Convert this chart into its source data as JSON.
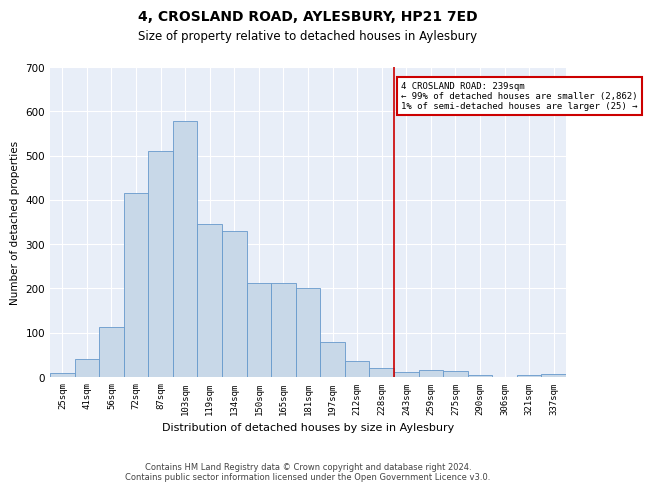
{
  "title": "4, CROSLAND ROAD, AYLESBURY, HP21 7ED",
  "subtitle": "Size of property relative to detached houses in Aylesbury",
  "xlabel": "Distribution of detached houses by size in Aylesbury",
  "ylabel": "Number of detached properties",
  "categories": [
    "25sqm",
    "41sqm",
    "56sqm",
    "72sqm",
    "87sqm",
    "103sqm",
    "119sqm",
    "134sqm",
    "150sqm",
    "165sqm",
    "181sqm",
    "197sqm",
    "212sqm",
    "228sqm",
    "243sqm",
    "259sqm",
    "275sqm",
    "290sqm",
    "306sqm",
    "321sqm",
    "337sqm"
  ],
  "bar_heights": [
    8,
    40,
    113,
    415,
    510,
    578,
    345,
    330,
    212,
    212,
    200,
    78,
    37,
    20,
    12,
    15,
    14,
    4,
    0,
    5,
    6
  ],
  "bar_color": "#c8d8e8",
  "bar_edge_color": "#6699cc",
  "bg_color": "#e8eef8",
  "vline_x_index": 13.5,
  "vline_color": "#cc0000",
  "annotation_title": "4 CROSLAND ROAD: 239sqm",
  "annotation_line1": "← 99% of detached houses are smaller (2,862)",
  "annotation_line2": "1% of semi-detached houses are larger (25) →",
  "annotation_box_color": "#cc0000",
  "ylim": [
    0,
    700
  ],
  "yticks": [
    0,
    100,
    200,
    300,
    400,
    500,
    600,
    700
  ],
  "footer1": "Contains HM Land Registry data © Crown copyright and database right 2024.",
  "footer2": "Contains public sector information licensed under the Open Government Licence v3.0."
}
